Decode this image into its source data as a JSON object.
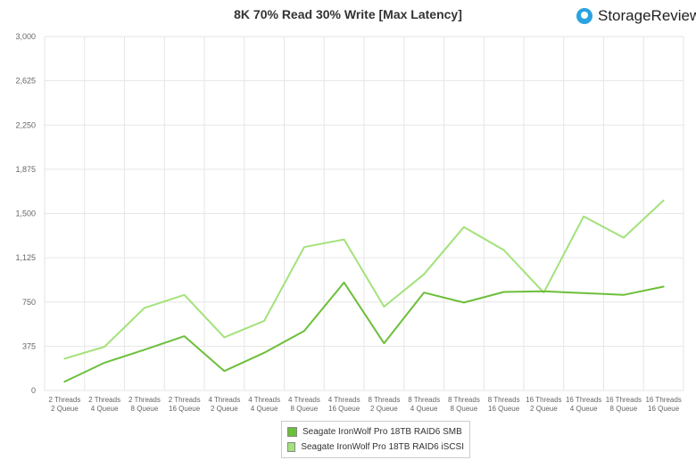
{
  "header": {
    "title": "8K 70% Read 30% Write [Max Latency]",
    "brand_name": "StorageReview"
  },
  "colors": {
    "series_smb": "#6cbf3a",
    "series_iscsi": "#a3e27a",
    "grid": "#e6e6e6",
    "axis_text": "#666666",
    "brand_icon": "#2aa3e0"
  },
  "chart_data": {
    "type": "line",
    "title": "8K 70% Read 30% Write [Max Latency]",
    "xlabel": "",
    "ylabel": "",
    "ylim": [
      0,
      3000
    ],
    "yticks": [
      0,
      375,
      750,
      1125,
      1500,
      1875,
      2250,
      2625,
      3000
    ],
    "ytick_labels": [
      "0",
      "375",
      "750",
      "1,125",
      "1,500",
      "1,875",
      "2,250",
      "2,625",
      "3,000"
    ],
    "grid": true,
    "legend_position": "bottom-center",
    "categories": [
      [
        "2 Threads",
        "2 Queue"
      ],
      [
        "2 Threads",
        "4 Queue"
      ],
      [
        "2 Threads",
        "8 Queue"
      ],
      [
        "2 Threads",
        "16 Queue"
      ],
      [
        "4 Threads",
        "2 Queue"
      ],
      [
        "4 Threads",
        "4 Queue"
      ],
      [
        "4 Threads",
        "8 Queue"
      ],
      [
        "4 Threads",
        "16 Queue"
      ],
      [
        "8 Threads",
        "2 Queue"
      ],
      [
        "8 Threads",
        "4 Queue"
      ],
      [
        "8 Threads",
        "8 Queue"
      ],
      [
        "8 Threads",
        "16 Queue"
      ],
      [
        "16 Threads",
        "2 Queue"
      ],
      [
        "16 Threads",
        "4 Queue"
      ],
      [
        "16 Threads",
        "8 Queue"
      ],
      [
        "16 Threads",
        "16 Queue"
      ]
    ],
    "series": [
      {
        "name": "Seagate IronWolf Pro 18TB RAID6 SMB",
        "color": "#6cbf3a",
        "values": [
          75,
          235,
          345,
          460,
          165,
          320,
          505,
          915,
          400,
          830,
          745,
          835,
          840,
          825,
          810,
          880
        ]
      },
      {
        "name": "Seagate IronWolf Pro 18TB RAID6 iSCSI",
        "color": "#a3e27a",
        "values": [
          270,
          370,
          700,
          810,
          450,
          590,
          1215,
          1280,
          710,
          985,
          1385,
          1190,
          830,
          1475,
          1295,
          1610
        ]
      }
    ]
  }
}
